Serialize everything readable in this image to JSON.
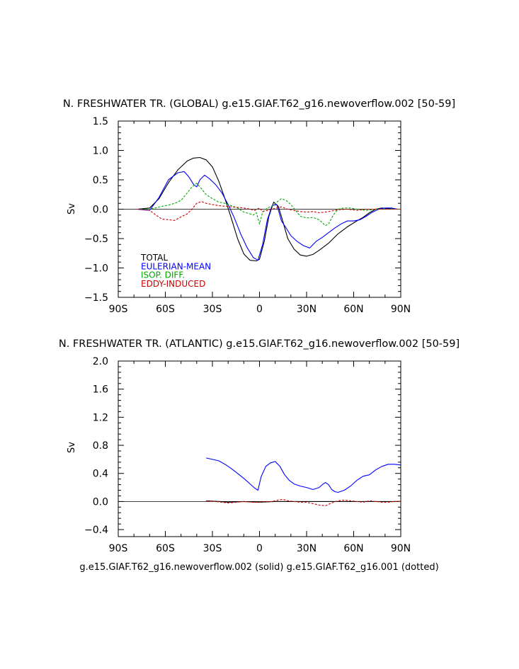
{
  "caption": "g.e15.GIAF.T62_g16.newoverflow.002 (solid) g.e15.GIAF.T62_g16.001 (dotted)",
  "chart_data": [
    {
      "type": "line",
      "title": "N. FRESHWATER TR. (GLOBAL) g.e15.GIAF.T62_g16.newoverflow.002 [50-59]",
      "ylabel": "Sv",
      "xlim": [
        -90,
        90
      ],
      "ylim": [
        -1.5,
        1.5
      ],
      "xticks": [
        -90,
        -60,
        -30,
        0,
        30,
        60,
        90
      ],
      "xtick_labels": [
        "90S",
        "60S",
        "30S",
        "0",
        "30N",
        "60N",
        "90N"
      ],
      "yticks": [
        -1.5,
        -1.0,
        -0.5,
        0.0,
        0.5,
        1.0,
        1.5
      ],
      "ytick_labels": [
        "−1.5",
        "−1.0",
        "−0.5",
        "0.0",
        "0.5",
        "1.0",
        "1.5"
      ],
      "legend_position": "lower-left",
      "series": [
        {
          "name": "TOTAL",
          "color": "#000000",
          "style": "solid",
          "x": [
            -78,
            -70,
            -64,
            -58,
            -52,
            -46,
            -42,
            -38,
            -34,
            -30,
            -26,
            -22,
            -18,
            -14,
            -10,
            -6,
            -2,
            0,
            3,
            6,
            9,
            12,
            15,
            18,
            22,
            26,
            30,
            34,
            38,
            44,
            50,
            56,
            62,
            66,
            70,
            74,
            78,
            82,
            86,
            90
          ],
          "y": [
            0.0,
            0.02,
            0.18,
            0.45,
            0.67,
            0.82,
            0.87,
            0.88,
            0.84,
            0.72,
            0.48,
            0.18,
            -0.15,
            -0.5,
            -0.76,
            -0.87,
            -0.88,
            -0.85,
            -0.55,
            -0.12,
            0.12,
            0.05,
            -0.22,
            -0.5,
            -0.68,
            -0.78,
            -0.8,
            -0.77,
            -0.7,
            -0.58,
            -0.42,
            -0.3,
            -0.2,
            -0.14,
            -0.06,
            0.0,
            0.02,
            0.01,
            0.0,
            0.0
          ]
        },
        {
          "name": "EULERIAN-MEAN",
          "color": "#0000ff",
          "style": "solid",
          "x": [
            -78,
            -70,
            -64,
            -58,
            -52,
            -48,
            -45,
            -42,
            -40,
            -38,
            -35,
            -32,
            -28,
            -24,
            -20,
            -16,
            -12,
            -8,
            -4,
            -1,
            2,
            5,
            8,
            11,
            14,
            17,
            20,
            24,
            28,
            32,
            36,
            40,
            44,
            48,
            52,
            56,
            60,
            64,
            68,
            72,
            76,
            80,
            84,
            88,
            90
          ],
          "y": [
            0.0,
            -0.02,
            0.2,
            0.5,
            0.62,
            0.64,
            0.55,
            0.42,
            0.38,
            0.5,
            0.58,
            0.52,
            0.42,
            0.28,
            0.08,
            -0.15,
            -0.42,
            -0.65,
            -0.82,
            -0.87,
            -0.6,
            -0.18,
            0.06,
            0.08,
            -0.2,
            -0.32,
            -0.45,
            -0.55,
            -0.62,
            -0.66,
            -0.55,
            -0.48,
            -0.4,
            -0.32,
            -0.25,
            -0.2,
            -0.2,
            -0.18,
            -0.12,
            -0.05,
            0.0,
            0.02,
            0.02,
            0.0,
            0.0
          ]
        },
        {
          "name": "ISOP. DIFF.",
          "color": "#00aa00",
          "style": "dashed",
          "x": [
            -78,
            -70,
            -62,
            -58,
            -54,
            -50,
            -46,
            -43,
            -40,
            -37,
            -34,
            -30,
            -26,
            -22,
            -18,
            -14,
            -10,
            -6,
            -4,
            -2,
            0,
            2,
            5,
            8,
            11,
            14,
            17,
            20,
            23,
            26,
            30,
            34,
            38,
            42,
            44,
            47,
            50,
            54,
            58,
            62,
            68,
            74,
            80,
            86,
            90
          ],
          "y": [
            0.0,
            0.0,
            0.05,
            0.07,
            0.1,
            0.15,
            0.28,
            0.38,
            0.44,
            0.35,
            0.25,
            0.18,
            0.12,
            0.1,
            0.06,
            0.02,
            -0.05,
            -0.08,
            -0.1,
            -0.06,
            -0.25,
            -0.05,
            0.02,
            0.05,
            0.12,
            0.18,
            0.15,
            0.08,
            -0.02,
            -0.12,
            -0.15,
            -0.14,
            -0.18,
            -0.28,
            -0.25,
            -0.1,
            0.0,
            0.02,
            0.02,
            0.0,
            -0.02,
            0.0,
            0.0,
            0.0,
            0.0
          ]
        },
        {
          "name": "EDDY-INDUCED",
          "color": "#cc0000",
          "style": "dashed",
          "x": [
            -78,
            -70,
            -66,
            -62,
            -58,
            -54,
            -50,
            -46,
            -43,
            -40,
            -37,
            -34,
            -30,
            -26,
            -22,
            -18,
            -14,
            -10,
            -6,
            -3,
            0,
            2,
            5,
            8,
            11,
            14,
            18,
            22,
            26,
            30,
            34,
            38,
            42,
            46,
            50,
            56,
            62,
            68,
            74,
            80,
            86,
            90
          ],
          "y": [
            0.0,
            -0.02,
            -0.1,
            -0.17,
            -0.18,
            -0.19,
            -0.13,
            -0.08,
            0.0,
            0.1,
            0.13,
            0.1,
            0.08,
            0.06,
            0.05,
            0.04,
            0.03,
            0.02,
            0.0,
            -0.02,
            0.02,
            -0.04,
            -0.02,
            0.0,
            0.02,
            0.04,
            0.0,
            -0.02,
            -0.04,
            -0.05,
            -0.04,
            -0.06,
            -0.05,
            -0.03,
            -0.01,
            0.0,
            -0.02,
            0.0,
            0.0,
            0.0,
            0.0,
            0.0
          ]
        }
      ]
    },
    {
      "type": "line",
      "title": "N. FRESHWATER TR. (ATLANTIC) g.e15.GIAF.T62_g16.newoverflow.002 [50-59]",
      "ylabel": "Sv",
      "xlim": [
        -90,
        90
      ],
      "ylim": [
        -0.5,
        2.0
      ],
      "xticks": [
        -90,
        -60,
        -30,
        0,
        30,
        60,
        90
      ],
      "xtick_labels": [
        "90S",
        "60S",
        "30S",
        "0",
        "30N",
        "60N",
        "90N"
      ],
      "yticks": [
        -0.4,
        0.0,
        0.4,
        0.8,
        1.2,
        1.6,
        2.0
      ],
      "ytick_labels": [
        "−0.4",
        "0.0",
        "0.4",
        "0.8",
        "1.2",
        "1.6",
        "2.0"
      ],
      "series": [
        {
          "color": "#0000ff",
          "style": "solid",
          "x": [
            -34,
            -30,
            -26,
            -22,
            -18,
            -14,
            -10,
            -6,
            -3,
            -1,
            1,
            4,
            7,
            10,
            13,
            16,
            19,
            22,
            26,
            30,
            34,
            38,
            40,
            42,
            44,
            46,
            48,
            50,
            54,
            58,
            62,
            66,
            70,
            74,
            78,
            82,
            86,
            90
          ],
          "y": [
            0.62,
            0.6,
            0.58,
            0.53,
            0.47,
            0.4,
            0.33,
            0.25,
            0.19,
            0.16,
            0.35,
            0.5,
            0.55,
            0.57,
            0.5,
            0.38,
            0.3,
            0.25,
            0.22,
            0.2,
            0.17,
            0.2,
            0.24,
            0.27,
            0.24,
            0.17,
            0.14,
            0.13,
            0.16,
            0.22,
            0.3,
            0.36,
            0.38,
            0.45,
            0.5,
            0.53,
            0.53,
            0.52
          ]
        },
        {
          "color": "#000000",
          "style": "solid",
          "x": [
            -34,
            -25,
            -20,
            -10,
            0,
            10,
            20,
            30,
            40,
            50,
            60,
            70,
            80,
            90
          ],
          "y": [
            0.01,
            0.0,
            -0.01,
            0.0,
            -0.01,
            0.0,
            0.0,
            0.0,
            0.0,
            0.0,
            0.0,
            0.0,
            0.0,
            0.0
          ]
        },
        {
          "color": "#cc0000",
          "style": "dashed",
          "x": [
            -34,
            -28,
            -24,
            -20,
            -15,
            -10,
            -5,
            0,
            4,
            8,
            12,
            15,
            18,
            22,
            26,
            30,
            34,
            38,
            42,
            46,
            50,
            54,
            58,
            62,
            66,
            70,
            74,
            78,
            82,
            86,
            90
          ],
          "y": [
            0.01,
            0.0,
            -0.01,
            -0.02,
            -0.01,
            0.0,
            -0.01,
            -0.01,
            0.0,
            0.0,
            0.02,
            0.03,
            0.01,
            0.0,
            -0.01,
            -0.01,
            -0.03,
            -0.05,
            -0.06,
            -0.02,
            0.01,
            0.02,
            0.01,
            0.0,
            -0.01,
            0.01,
            0.0,
            -0.01,
            -0.01,
            0.0,
            0.0
          ]
        }
      ]
    }
  ]
}
